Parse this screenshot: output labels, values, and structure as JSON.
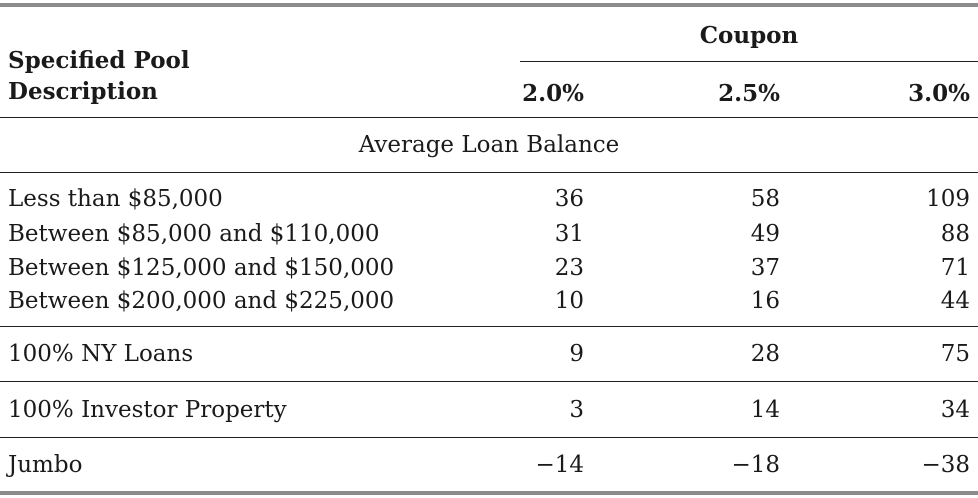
{
  "table": {
    "header": {
      "description_label": "Specified Pool Description",
      "coupon_label": "Coupon",
      "coupons": [
        "2.0%",
        "2.5%",
        "3.0%"
      ]
    },
    "section_title": "Average Loan Balance",
    "balance_rows": [
      {
        "label": "Less than $85,000",
        "values": [
          "36",
          "58",
          "109"
        ]
      },
      {
        "label": "Between $85,000 and $110,000",
        "values": [
          "31",
          "49",
          "88"
        ]
      },
      {
        "label": "Between $125,000 and $150,000",
        "values": [
          "23",
          "37",
          "71"
        ]
      },
      {
        "label": "Between $200,000 and $225,000",
        "values": [
          "10",
          "16",
          "44"
        ]
      }
    ],
    "other_rows": [
      {
        "label": "100% NY Loans",
        "values": [
          "9",
          "28",
          "75"
        ]
      },
      {
        "label": "100% Investor Property",
        "values": [
          "3",
          "14",
          "34"
        ]
      },
      {
        "label": "Jumbo",
        "values": [
          "−14",
          "−18",
          "−38"
        ]
      }
    ]
  }
}
